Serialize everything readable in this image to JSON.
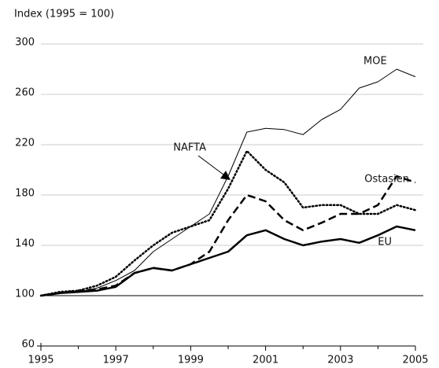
{
  "chart_data": {
    "type": "line",
    "y_label": "Index (1995 = 100)",
    "x": [
      1995,
      1995.5,
      1996,
      1996.5,
      1997,
      1997.5,
      1998,
      1998.5,
      1999,
      1999.5,
      2000,
      2000.5,
      2001,
      2001.5,
      2002,
      2002.5,
      2003,
      2003.5,
      2004,
      2004.5,
      2005
    ],
    "series": [
      {
        "name": "MOE",
        "color": "#000000",
        "values": [
          100,
          102,
          103,
          106,
          112,
          120,
          135,
          145,
          155,
          165,
          195,
          230,
          233,
          232,
          228,
          240,
          248,
          265,
          270,
          280,
          274
        ]
      },
      {
        "name": "NAFTA",
        "color": "#000000",
        "values": [
          100,
          103,
          104,
          108,
          115,
          128,
          140,
          150,
          155,
          160,
          185,
          215,
          200,
          190,
          170,
          172,
          172,
          165,
          165,
          172,
          168
        ]
      },
      {
        "name": "Ostasien",
        "color": "#000000",
        "values": [
          100,
          102,
          104,
          105,
          108,
          118,
          122,
          120,
          125,
          135,
          160,
          180,
          175,
          160,
          152,
          158,
          165,
          165,
          172,
          195,
          190
        ]
      },
      {
        "name": "EU",
        "color": "#000000",
        "values": [
          100,
          102,
          103,
          104,
          107,
          118,
          122,
          120,
          125,
          130,
          135,
          148,
          152,
          145,
          140,
          143,
          145,
          142,
          148,
          155,
          152
        ]
      }
    ],
    "xlim": [
      1995,
      2005
    ],
    "xticks": [
      1995,
      1997,
      1999,
      2001,
      2003,
      2005
    ],
    "minor_xticks": [
      1996,
      1998,
      2000,
      2002,
      2004
    ],
    "ylim": [
      60,
      300
    ],
    "yticks": [
      60,
      100,
      140,
      180,
      220,
      260,
      300
    ],
    "grid": true
  }
}
